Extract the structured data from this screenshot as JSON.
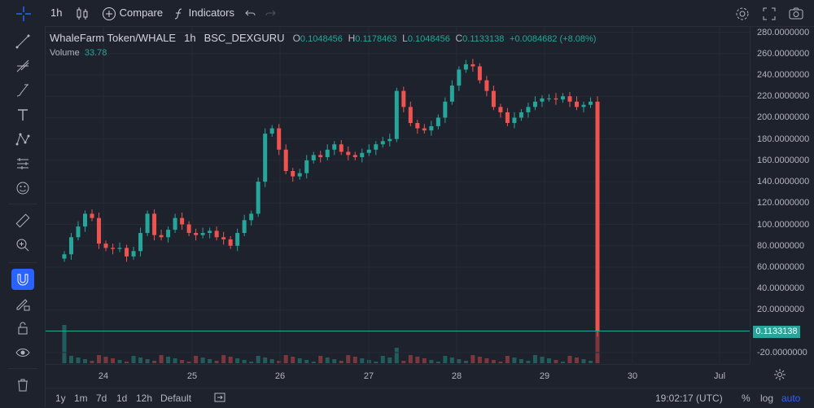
{
  "toolbar": {
    "interval": "1h",
    "compare": "Compare",
    "indicators": "Indicators"
  },
  "legend": {
    "symbol": "WhaleFarm Token/WHALE",
    "interval": "1h",
    "exchange": "BSC_DEXGURU",
    "open_label": "O",
    "open": "0.1048456",
    "high_label": "H",
    "high": "0.1178463",
    "low_label": "L",
    "low": "0.1048456",
    "close_label": "C",
    "close": "0.1133138",
    "change": "+0.0084682 (+8.08%)",
    "volume_label": "Volume",
    "volume": "33.78"
  },
  "price_axis": {
    "ticks": [
      "280.0000000",
      "260.0000000",
      "240.0000000",
      "220.0000000",
      "200.0000000",
      "180.0000000",
      "160.0000000",
      "140.0000000",
      "120.0000000",
      "100.0000000",
      "80.0000000",
      "60.0000000",
      "40.0000000",
      "20.0000000",
      "-20.0000000"
    ],
    "current_price": "0.1133138"
  },
  "time_axis": {
    "ticks": [
      "24",
      "25",
      "26",
      "27",
      "28",
      "29",
      "30",
      "Jul"
    ]
  },
  "bottom": {
    "ranges": [
      "1y",
      "1m",
      "7d",
      "1d",
      "12h",
      "Default"
    ],
    "time": "19:02:17 (UTC)",
    "percent": "%",
    "log": "log",
    "auto": "auto"
  },
  "colors": {
    "up": "#26a69a",
    "down": "#ef5350",
    "background": "#1e222d",
    "accent": "#2962ff"
  },
  "icons": {
    "left_toolbar": [
      "crosshair-icon",
      "trend-line-icon",
      "fib-retracement-icon",
      "brush-icon",
      "text-icon",
      "pattern-icon",
      "prediction-icon",
      "emoji-icon",
      "measure-icon",
      "zoom-in-icon",
      "magnet-icon",
      "lock-draw-icon",
      "lock-icon",
      "eye-icon",
      "trash-icon"
    ],
    "top_right": [
      "settings-icon",
      "fullscreen-icon",
      "camera-icon"
    ]
  },
  "chart_data": {
    "type": "candlestick",
    "y_axis_range": [
      -30,
      285
    ],
    "x_labels": [
      "24",
      "25",
      "26",
      "27",
      "28",
      "29",
      "30",
      "Jul"
    ],
    "close_path": [
      72,
      88,
      98,
      110,
      106,
      82,
      78,
      77,
      78,
      70,
      75,
      92,
      110,
      90,
      88,
      95,
      106,
      100,
      92,
      90,
      92,
      94,
      88,
      86,
      80,
      92,
      104,
      110,
      140,
      185,
      190,
      170,
      150,
      145,
      148,
      160,
      165,
      163,
      170,
      175,
      168,
      165,
      163,
      167,
      170,
      175,
      178,
      180,
      225,
      210,
      195,
      190,
      188,
      192,
      200,
      215,
      230,
      245,
      250,
      248,
      235,
      225,
      210,
      205,
      195,
      200,
      205,
      210,
      215,
      218,
      218,
      217,
      220,
      215,
      210,
      212,
      215,
      0.11
    ],
    "current_close": "0.1133138"
  }
}
